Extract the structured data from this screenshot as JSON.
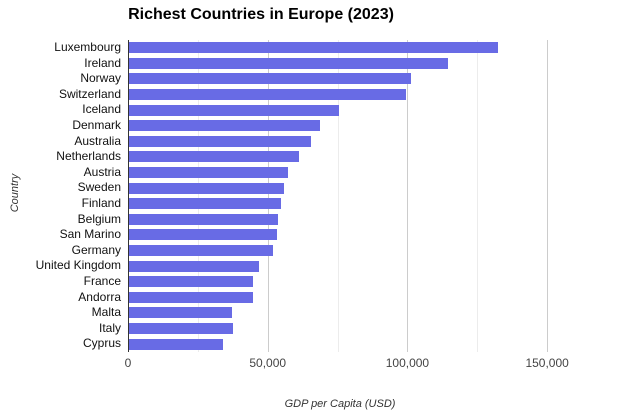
{
  "chart_data": {
    "type": "bar",
    "orientation": "horizontal",
    "title": "Richest Countries in Europe (2023)",
    "xlabel": "GDP per Capita (USD)",
    "ylabel": "Country",
    "categories": [
      "Luxembourg",
      "Ireland",
      "Norway",
      "Switzerland",
      "Iceland",
      "Denmark",
      "Australia",
      "Netherlands",
      "Austria",
      "Sweden",
      "Finland",
      "Belgium",
      "San Marino",
      "Germany",
      "United Kingdom",
      "France",
      "Andorra",
      "Malta",
      "Italy",
      "Cyprus"
    ],
    "values": [
      132000,
      114000,
      101000,
      99000,
      75000,
      68500,
      65000,
      61000,
      57000,
      55500,
      54500,
      53200,
      52900,
      51500,
      46500,
      44500,
      44300,
      36900,
      37100,
      33600
    ],
    "xlim": [
      0,
      175000
    ],
    "xticks": [
      0,
      50000,
      100000,
      150000
    ],
    "xtick_labels": [
      "0",
      "50,000",
      "100,000",
      "150,000"
    ],
    "minor_gridlines": [
      25000,
      75000,
      125000
    ],
    "grid": true,
    "legend_position": "none",
    "colors": {
      "bar": "#686BE5",
      "axis_line": "#333333",
      "major_grid": "#cccccc",
      "minor_grid": "#ececec"
    }
  }
}
